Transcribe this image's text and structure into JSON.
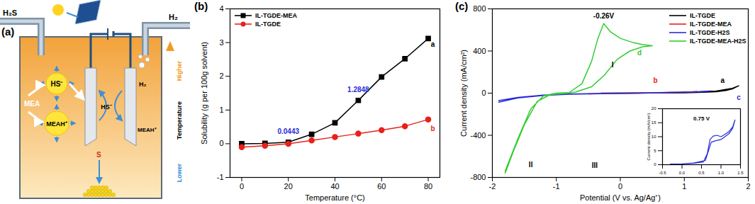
{
  "diagram": {
    "label": "(a)",
    "inlet": "H₂S",
    "outlet": "H₂",
    "reagent": "MEA",
    "ions": [
      "HS⁻",
      "MEAH⁺"
    ],
    "electrode_labels": [
      "HS⁻",
      "H₂",
      "MEAH⁺"
    ],
    "product": "S",
    "temperature_axis": {
      "title": "Temperature",
      "top": "Higher",
      "bottom": "Lower"
    }
  },
  "chart_data": [
    {
      "type": "line",
      "title": "(b)",
      "x_label": "Temperature (°C)",
      "y_label": "Solubility (g per 100g solvent)",
      "x": [
        0,
        10,
        20,
        30,
        40,
        50,
        60,
        70,
        80
      ],
      "series": [
        {
          "name": "IL-TGDE-MEA",
          "color": "#000000",
          "marker": "square",
          "values": [
            0.0,
            0.01,
            0.0443,
            0.28,
            0.62,
            1.2848,
            1.98,
            2.52,
            3.12
          ]
        },
        {
          "name": "IL-TGDE",
          "color": "#e8211b",
          "marker": "circle",
          "values": [
            -0.1,
            -0.06,
            0.0,
            0.1,
            0.2,
            0.3,
            0.4,
            0.52,
            0.72
          ]
        }
      ],
      "xlim": [
        -5,
        85
      ],
      "ylim": [
        -1,
        4
      ],
      "xticks": [
        0,
        20,
        40,
        60,
        80
      ],
      "yticks": [
        -1,
        0,
        1,
        2,
        3,
        4
      ],
      "legend": "upper left",
      "annotations": [
        {
          "text": "0.0443",
          "x": 20,
          "y": 0.35,
          "color": "#2a2ad8"
        },
        {
          "text": "1.2848",
          "x": 50,
          "y": 1.6,
          "color": "#2a2ad8"
        },
        {
          "text": "a",
          "x": 82,
          "y": 2.95,
          "color": "#000000"
        },
        {
          "text": "b",
          "x": 82,
          "y": 0.45,
          "color": "#e8211b"
        }
      ]
    },
    {
      "type": "line",
      "title": "(c)",
      "x_label": "Potential (V vs. Ag/Ag⁺)",
      "y_label": "Current density (mA/cm²)",
      "series": [
        {
          "name": "IL-TGDE",
          "color": "#000000",
          "x": [
            -0.3,
            0.2,
            0.6,
            1.0,
            1.3,
            1.5,
            1.65,
            1.75,
            1.85,
            1.75,
            1.5,
            1.0,
            0.5,
            -0.3
          ],
          "values": [
            0,
            1,
            2,
            4,
            8,
            14,
            25,
            40,
            70,
            45,
            20,
            6,
            2,
            -1
          ]
        },
        {
          "name": "IL-TGDE-MEA",
          "color": "#e8211b",
          "x": [
            -0.5,
            -0.2,
            0.2,
            0.6,
            0.9,
            1.1,
            1.2
          ],
          "values": [
            -6,
            -2,
            0,
            3,
            8,
            12,
            16
          ]
        },
        {
          "name": "IL-TGDE-H2S",
          "color": "#2a2ad8",
          "x": [
            -1.9,
            -1.6,
            -1.2,
            -0.8,
            -0.3,
            0.3,
            0.7,
            1.0,
            1.3,
            1.4,
            1.2,
            0.8,
            0.3,
            -0.3,
            -0.8,
            -1.2,
            -1.6,
            -1.9
          ],
          "values": [
            -70,
            -40,
            -18,
            -8,
            -3,
            0,
            5,
            10,
            14,
            20,
            12,
            8,
            0,
            -5,
            -10,
            -22,
            -45,
            -85
          ]
        },
        {
          "name": "IL-TGDE-MEA-H2S",
          "color": "#33cc33",
          "x": [
            -1.8,
            -1.6,
            -1.4,
            -1.2,
            -1.0,
            -0.8,
            -0.6,
            -0.45,
            -0.35,
            -0.26,
            -0.15,
            0.0,
            0.2,
            0.35,
            0.5,
            0.5,
            0.35,
            0.15,
            -0.05,
            -0.25,
            -0.45,
            -0.7,
            -0.9,
            -1.1,
            -1.3,
            -1.5,
            -1.65,
            -1.8
          ],
          "values": [
            -740,
            -430,
            -150,
            -25,
            0,
            5,
            90,
            300,
            520,
            660,
            580,
            520,
            480,
            460,
            450,
            450,
            440,
            400,
            320,
            170,
            60,
            10,
            -5,
            -15,
            -80,
            -300,
            -520,
            -760
          ]
        }
      ],
      "xlim": [
        -2,
        2
      ],
      "ylim": [
        -800,
        800
      ],
      "xticks": [
        -2,
        -1,
        0,
        1,
        2
      ],
      "yticks": [
        -800,
        -400,
        0,
        400,
        800
      ],
      "legend": "upper right",
      "annotations": [
        {
          "text": "-0.26V",
          "x": -0.26,
          "y": 730,
          "color": "#000000"
        },
        {
          "text": "I",
          "x": -0.12,
          "y": 270,
          "color": "#000000"
        },
        {
          "text": "II",
          "x": -1.4,
          "y": -680,
          "color": "#000000"
        },
        {
          "text": "III",
          "x": -0.4,
          "y": -690,
          "color": "#000000"
        },
        {
          "text": "a",
          "x": 1.6,
          "y": 120,
          "color": "#000000"
        },
        {
          "text": "b",
          "x": 0.55,
          "y": 120,
          "color": "#e8211b"
        },
        {
          "text": "c",
          "x": 1.85,
          "y": -40,
          "color": "#2a2ad8"
        },
        {
          "text": "d",
          "x": 0.3,
          "y": 380,
          "color": "#33cc33"
        }
      ]
    },
    {
      "type": "line",
      "y_label": "Current density (mA/cm²)",
      "series": [
        {
          "color": "#2a2ad8",
          "x": [
            -0.3,
            0,
            0.3,
            0.55,
            0.65,
            0.72,
            0.8,
            0.9,
            1.0,
            1.1,
            1.2,
            1.3,
            1.36,
            1.3,
            1.2,
            1.0,
            0.85,
            0.75,
            0.6,
            0.3,
            0,
            -0.3
          ],
          "values": [
            0.2,
            0.3,
            0.5,
            1,
            4,
            9,
            10.2,
            10.5,
            10,
            10.8,
            11.8,
            13.5,
            16,
            13,
            11,
            9,
            8.5,
            8,
            1.5,
            0.6,
            0.3,
            0.1
          ]
        }
      ],
      "xlim": [
        -0.5,
        1.5
      ],
      "ylim": [
        0,
        20
      ],
      "xticks": [
        -0.5,
        {
          "value": 0,
          "label": "0.0"
        },
        0.5,
        {
          "value": 1,
          "label": "1.0"
        },
        1.5
      ],
      "yticks": [
        0,
        5,
        10,
        15,
        20
      ],
      "annotations": [
        {
          "text": "0.75 V",
          "x": 0.5,
          "y": 16.5,
          "color": "#000000"
        }
      ]
    }
  ]
}
